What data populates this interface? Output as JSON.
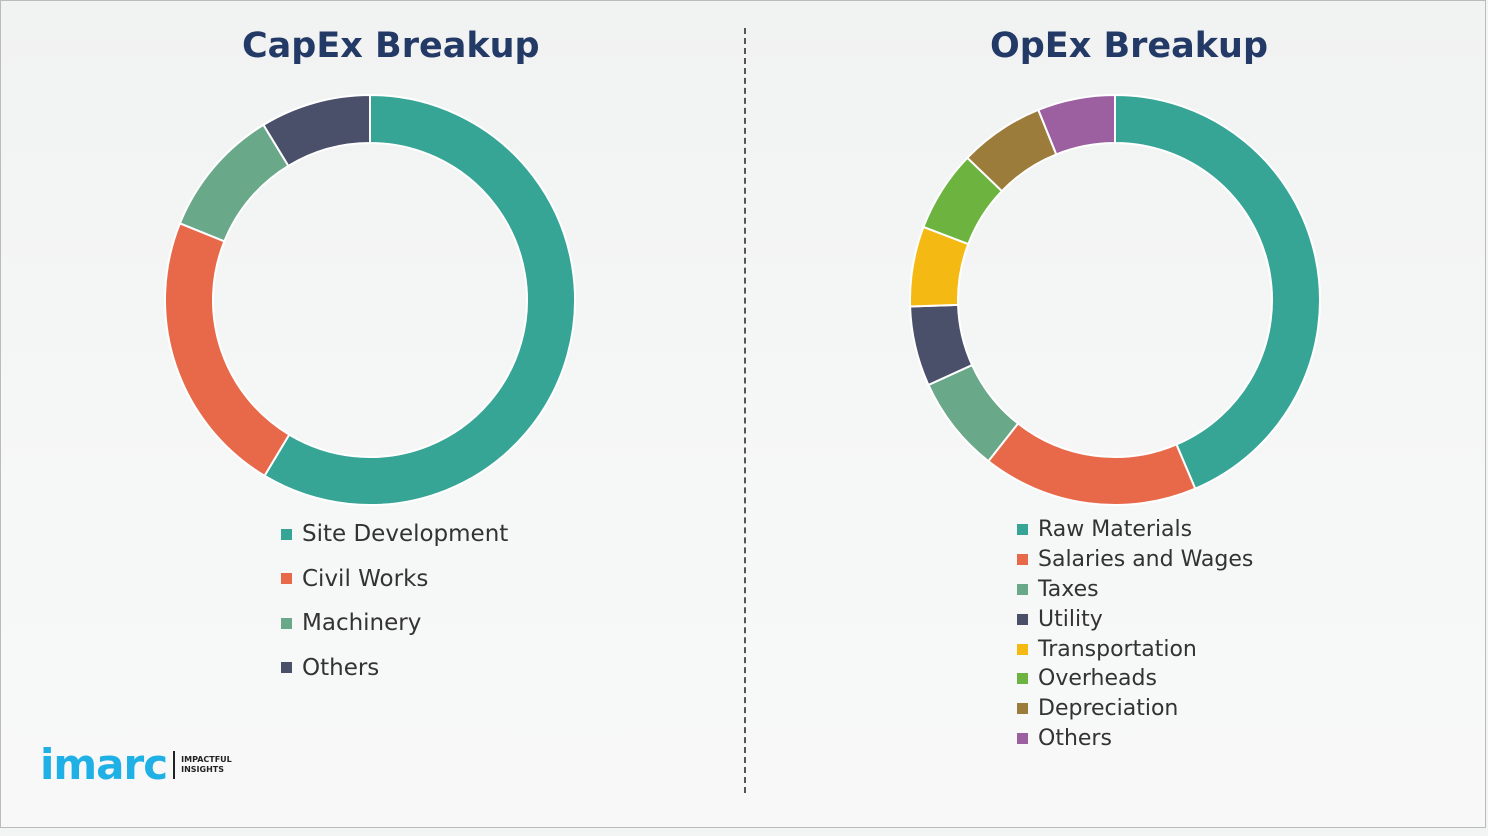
{
  "chart_data": [
    {
      "type": "pie",
      "title": "CapEx Breakup",
      "legend": "bottom",
      "categories": [
        "Site Development",
        "Civil Works",
        "Machinery",
        "Others"
      ],
      "values": [
        58.6,
        22.5,
        10.2,
        8.7
      ],
      "colors": [
        "#36a596",
        "#e8694a",
        "#6aa88a",
        "#4a4f6a"
      ]
    },
    {
      "type": "pie",
      "title": "OpEx Breakup",
      "legend": "bottom",
      "categories": [
        "Raw Materials",
        "Salaries and Wages",
        "Taxes",
        "Utility",
        "Transportation",
        "Overheads",
        "Depreciation",
        "Others"
      ],
      "values": [
        43.6,
        17.0,
        7.6,
        6.3,
        6.3,
        6.4,
        6.7,
        6.1
      ],
      "colors": [
        "#36a596",
        "#e8694a",
        "#6aa88a",
        "#4a4f6a",
        "#f5b914",
        "#6cb33f",
        "#9b7c3a",
        "#9c5fa0"
      ]
    }
  ],
  "logo": {
    "text": "imarc",
    "tagline_1": "IMPACTFUL",
    "tagline_2": "INSIGHTS"
  }
}
